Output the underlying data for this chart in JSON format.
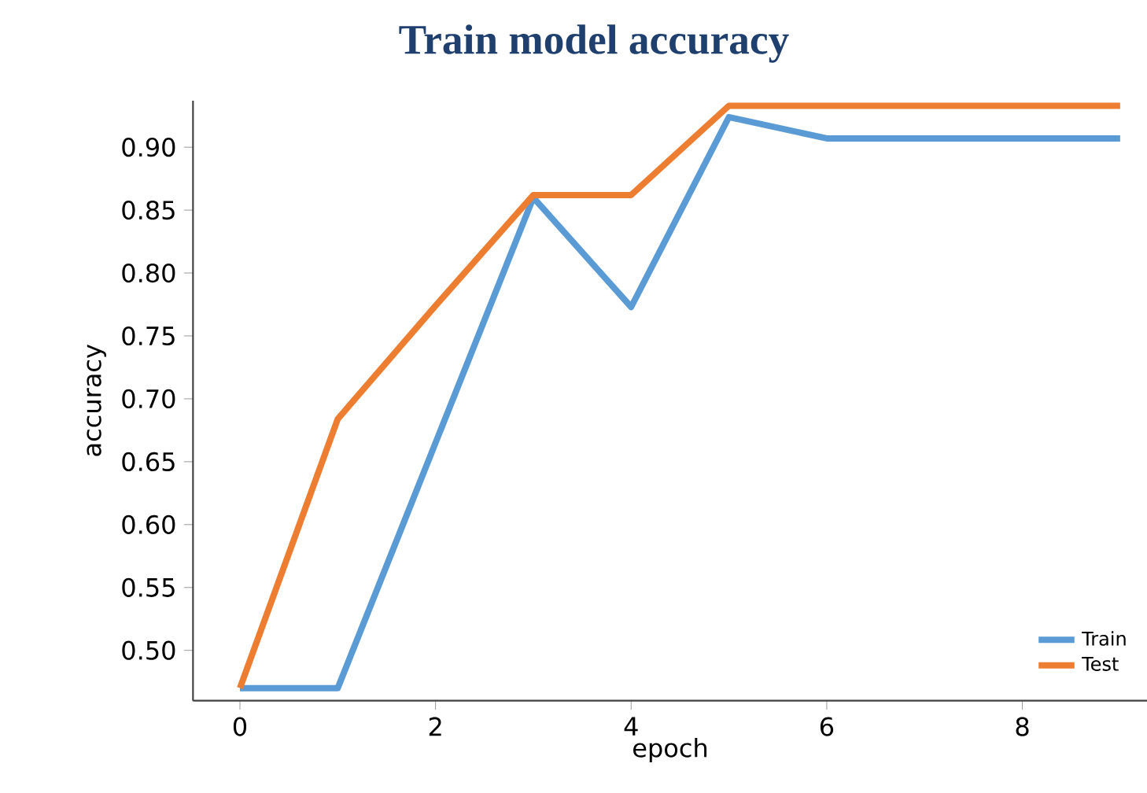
{
  "chart_data": {
    "type": "line",
    "title": "Train model accuracy",
    "xlabel": "epoch",
    "ylabel": "accuracy",
    "x": [
      0,
      1,
      2,
      3,
      4,
      5,
      6,
      7,
      8,
      9
    ],
    "series": [
      {
        "name": "Train",
        "color": "#5b9bd5",
        "values": [
          0.47,
          0.47,
          0.665,
          0.86,
          0.773,
          0.924,
          0.907,
          0.907,
          0.907,
          0.907
        ]
      },
      {
        "name": "Test",
        "color": "#ed7d31",
        "values": [
          0.47,
          0.684,
          0.774,
          0.862,
          0.862,
          0.933,
          0.933,
          0.933,
          0.933,
          0.933
        ]
      }
    ],
    "xlim": [
      -0.48,
      9.28
    ],
    "ylim": [
      0.46,
      0.937
    ],
    "xticks": [
      0,
      2,
      4,
      6,
      8
    ],
    "yticks": [
      {
        "value": 0.5,
        "label": "0.50"
      },
      {
        "value": 0.55,
        "label": "0.55"
      },
      {
        "value": 0.6,
        "label": "0.60"
      },
      {
        "value": 0.65,
        "label": "0.65"
      },
      {
        "value": 0.7,
        "label": "0.70"
      },
      {
        "value": 0.75,
        "label": "0.75"
      },
      {
        "value": 0.8,
        "label": "0.80"
      },
      {
        "value": 0.85,
        "label": "0.85"
      },
      {
        "value": 0.9,
        "label": "0.90"
      }
    ],
    "legend": "bottom right",
    "grid": false,
    "marker": "none",
    "line_style": "solid"
  }
}
